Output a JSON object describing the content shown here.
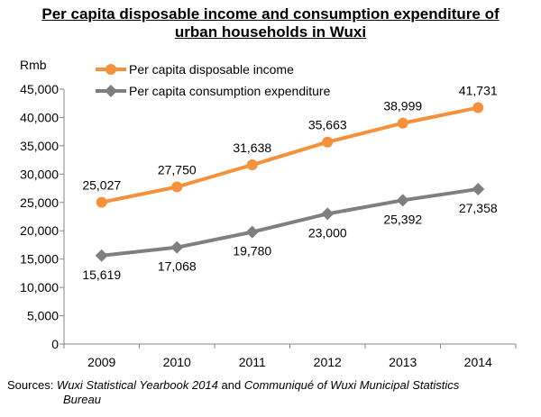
{
  "title_line1": "Per capita disposable income and consumption expenditure of",
  "title_line2": "urban households in Wuxi",
  "sources": {
    "prefix": "Sources: ",
    "source1": "Wuxi Statistical Yearbook 2014",
    "joiner": " and ",
    "source2_part1": "Communiqué of Wuxi Municipal Statistics",
    "source2_part2": "Bureau"
  },
  "colors": {
    "income": "#F5913A",
    "expenditure": "#7F7F7F"
  },
  "chart_data": {
    "type": "line",
    "title": "Per capita disposable income and consumption expenditure of urban households in Wuxi",
    "ylabel": "Rmb",
    "xlabel": "",
    "categories": [
      "2009",
      "2010",
      "2011",
      "2012",
      "2013",
      "2014"
    ],
    "ylim": [
      0,
      45000
    ],
    "yticks": [
      0,
      5000,
      10000,
      15000,
      20000,
      25000,
      30000,
      35000,
      40000,
      45000
    ],
    "ytick_labels": [
      "0",
      "5,000",
      "10,000",
      "15,000",
      "20,000",
      "25,000",
      "30,000",
      "35,000",
      "40,000",
      "45,000"
    ],
    "grid": false,
    "legend_position": "top-left",
    "series": [
      {
        "name": "Per capita disposable income",
        "values": [
          25027,
          27750,
          31638,
          35663,
          38999,
          41731
        ],
        "labels": [
          "25,027",
          "27,750",
          "31,638",
          "35,663",
          "38,999",
          "41,731"
        ],
        "marker": "circle",
        "label_position": "above"
      },
      {
        "name": "Per capita consumption expenditure",
        "values": [
          15619,
          17068,
          19780,
          23000,
          25392,
          27358
        ],
        "labels": [
          "15,619",
          "17,068",
          "19,780",
          "23,000",
          "25,392",
          "27,358"
        ],
        "marker": "diamond",
        "label_position": "below"
      }
    ]
  }
}
